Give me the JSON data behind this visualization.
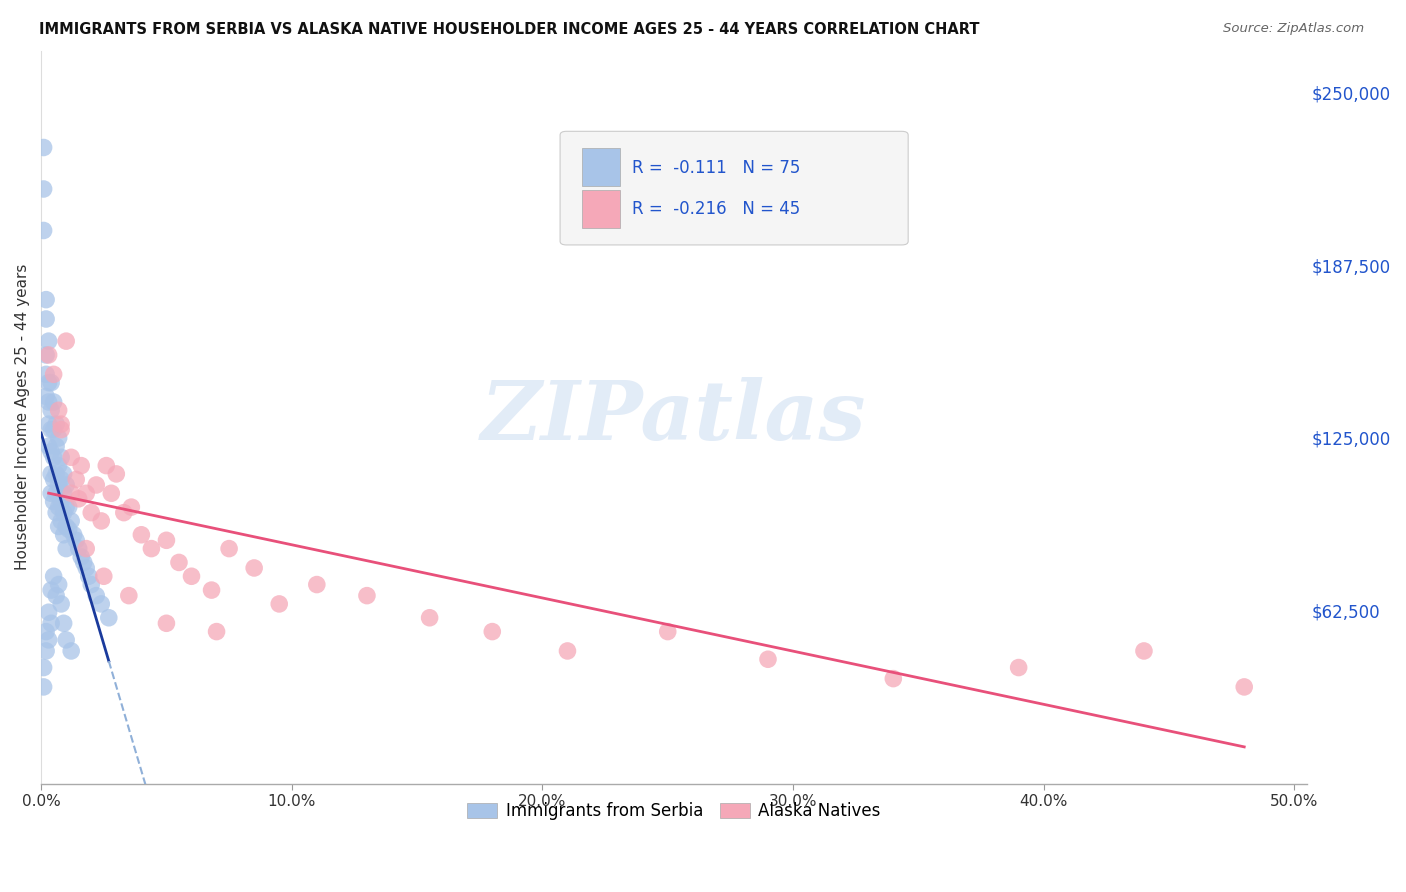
{
  "title": "IMMIGRANTS FROM SERBIA VS ALASKA NATIVE HOUSEHOLDER INCOME AGES 25 - 44 YEARS CORRELATION CHART",
  "source": "Source: ZipAtlas.com",
  "ylabel": "Householder Income Ages 25 - 44 years",
  "ytick_values": [
    62500,
    125000,
    187500,
    250000
  ],
  "ylim": [
    0,
    265000
  ],
  "xlim": [
    0.0,
    0.505
  ],
  "legend_serbia_r": "-0.111",
  "legend_serbia_n": "75",
  "legend_native_r": "-0.216",
  "legend_native_n": "45",
  "serbia_color": "#a8c4e8",
  "native_color": "#f5a8b8",
  "serbia_line_color": "#1a3a9c",
  "native_line_color": "#e8507a",
  "dashed_line_color": "#90b0d8",
  "watermark_text": "ZIPatlas",
  "serbia_points_x": [
    0.001,
    0.001,
    0.001,
    0.002,
    0.002,
    0.002,
    0.002,
    0.002,
    0.003,
    0.003,
    0.003,
    0.003,
    0.003,
    0.004,
    0.004,
    0.004,
    0.004,
    0.004,
    0.004,
    0.005,
    0.005,
    0.005,
    0.005,
    0.005,
    0.006,
    0.006,
    0.006,
    0.006,
    0.006,
    0.007,
    0.007,
    0.007,
    0.007,
    0.007,
    0.008,
    0.008,
    0.008,
    0.008,
    0.009,
    0.009,
    0.009,
    0.009,
    0.01,
    0.01,
    0.01,
    0.01,
    0.011,
    0.011,
    0.012,
    0.013,
    0.014,
    0.015,
    0.016,
    0.017,
    0.018,
    0.019,
    0.02,
    0.022,
    0.024,
    0.027,
    0.001,
    0.001,
    0.002,
    0.002,
    0.003,
    0.003,
    0.004,
    0.004,
    0.005,
    0.006,
    0.007,
    0.008,
    0.009,
    0.01,
    0.012
  ],
  "serbia_points_y": [
    230000,
    215000,
    200000,
    175000,
    168000,
    155000,
    148000,
    140000,
    160000,
    145000,
    138000,
    130000,
    122000,
    145000,
    135000,
    128000,
    120000,
    112000,
    105000,
    138000,
    128000,
    118000,
    110000,
    102000,
    130000,
    122000,
    112000,
    105000,
    98000,
    125000,
    115000,
    108000,
    100000,
    93000,
    118000,
    110000,
    102000,
    95000,
    112000,
    105000,
    98000,
    90000,
    108000,
    100000,
    93000,
    85000,
    100000,
    92000,
    95000,
    90000,
    88000,
    85000,
    82000,
    80000,
    78000,
    75000,
    72000,
    68000,
    65000,
    60000,
    42000,
    35000,
    55000,
    48000,
    62000,
    52000,
    70000,
    58000,
    75000,
    68000,
    72000,
    65000,
    58000,
    52000,
    48000
  ],
  "native_points_x": [
    0.003,
    0.005,
    0.007,
    0.008,
    0.01,
    0.012,
    0.014,
    0.015,
    0.016,
    0.018,
    0.02,
    0.022,
    0.024,
    0.026,
    0.028,
    0.03,
    0.033,
    0.036,
    0.04,
    0.044,
    0.05,
    0.055,
    0.06,
    0.068,
    0.075,
    0.085,
    0.095,
    0.11,
    0.13,
    0.155,
    0.18,
    0.21,
    0.25,
    0.29,
    0.34,
    0.39,
    0.44,
    0.48,
    0.008,
    0.012,
    0.018,
    0.025,
    0.035,
    0.05,
    0.07
  ],
  "native_points_y": [
    155000,
    148000,
    135000,
    128000,
    160000,
    118000,
    110000,
    103000,
    115000,
    105000,
    98000,
    108000,
    95000,
    115000,
    105000,
    112000,
    98000,
    100000,
    90000,
    85000,
    88000,
    80000,
    75000,
    70000,
    85000,
    78000,
    65000,
    72000,
    68000,
    60000,
    55000,
    48000,
    55000,
    45000,
    38000,
    42000,
    48000,
    35000,
    130000,
    105000,
    85000,
    75000,
    68000,
    58000,
    55000
  ]
}
